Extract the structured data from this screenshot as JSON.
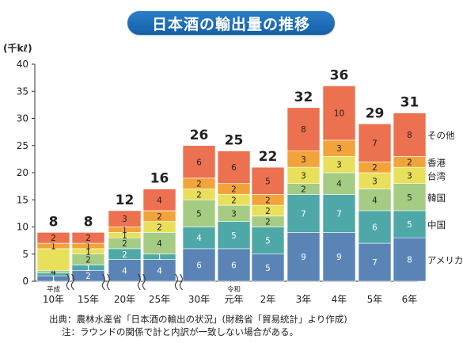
{
  "title": "日本酒の輸出量の推移",
  "unit": "(千kℓ)",
  "chart_data": {
    "type": "bar",
    "stacked": true,
    "ylim": [
      0,
      40
    ],
    "yticks": [
      0,
      5,
      10,
      15,
      20,
      25,
      30,
      35,
      40
    ],
    "grid": false,
    "categories": [
      "10年",
      "15年",
      "20年",
      "25年",
      "30年",
      "元年",
      "2年",
      "3年",
      "4年",
      "5年",
      "6年"
    ],
    "era_labels": [
      {
        "category": "10年",
        "text": "平成"
      },
      {
        "category": "元年",
        "text": "令和"
      }
    ],
    "axis_breaks_after": [
      "10年",
      "15年",
      "20年",
      "25年"
    ],
    "totals": [
      8,
      8,
      12,
      16,
      26,
      25,
      22,
      32,
      36,
      29,
      31
    ],
    "series": [
      {
        "name": "アメリカ",
        "color": "#5a84b6",
        "values": [
          1,
          2,
          4,
          4,
          6,
          6,
          5,
          9,
          9,
          7,
          8
        ]
      },
      {
        "name": "中国",
        "color": "#4fa8a8",
        "values": [
          0.5,
          1,
          2,
          1,
          4,
          5,
          5,
          7,
          7,
          6,
          5
        ]
      },
      {
        "name": "韓国",
        "color": "#a5cc83",
        "values": [
          0.5,
          2,
          2,
          4,
          5,
          3,
          2,
          2,
          4,
          4,
          5
        ]
      },
      {
        "name": "台湾",
        "color": "#e8e05a",
        "values": [
          4,
          1,
          1,
          2,
          2,
          2,
          2,
          3,
          3,
          3,
          3
        ]
      },
      {
        "name": "香港",
        "color": "#f2a43a",
        "values": [
          1,
          1,
          1,
          2,
          2,
          2,
          2,
          3,
          3,
          2,
          2
        ]
      },
      {
        "name": "その他",
        "color": "#ec7150",
        "values": [
          2,
          2,
          3,
          4,
          6,
          6,
          5,
          8,
          10,
          7,
          8
        ]
      }
    ],
    "labels": [
      [
        "1",
        "",
        "4",
        "",
        "1",
        "2"
      ],
      [
        "2",
        "1",
        "2",
        "1",
        "1",
        "2"
      ],
      [
        "4",
        "2",
        "2",
        "1",
        "1",
        "3"
      ],
      [
        "4",
        "1",
        "4",
        "2",
        "2",
        "4"
      ],
      [
        "6",
        "4",
        "5",
        "2",
        "2",
        "6"
      ],
      [
        "6",
        "5",
        "3",
        "2",
        "2",
        "6"
      ],
      [
        "5",
        "5",
        "2",
        "2",
        "2",
        "5"
      ],
      [
        "9",
        "7",
        "2",
        "3",
        "3",
        "8"
      ],
      [
        "9",
        "7",
        "4",
        "3",
        "3",
        "10"
      ],
      [
        "7",
        "6",
        "4",
        "3",
        "2",
        "7"
      ],
      [
        "8",
        "5",
        "5",
        "3",
        "2",
        "8"
      ]
    ]
  },
  "footer": {
    "source": "出典：農林水産省「日本酒の輸出の状況」(財務省「貿易統計」より作成)",
    "note": "注：ラウンドの関係で計と内訳が一致しない場合がある。"
  }
}
